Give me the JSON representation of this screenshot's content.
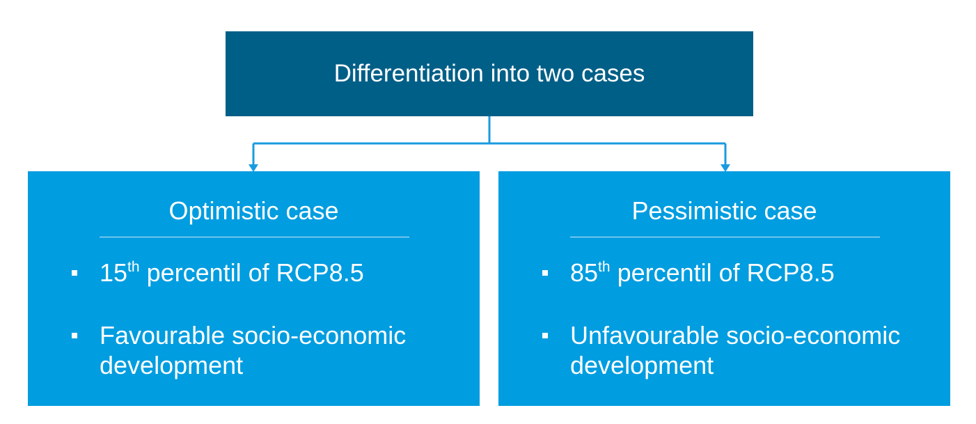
{
  "title": "Differentiation into two cases",
  "cases": [
    {
      "title": "Optimistic case",
      "bullets": [
        {
          "number": "15",
          "superscript": "th",
          "text": " percentil of RCP8.5"
        },
        {
          "text": "Favourable socio-economic development"
        }
      ]
    },
    {
      "title": "Pessimistic case",
      "bullets": [
        {
          "number": "85",
          "superscript": "th",
          "text": " percentil of RCP8.5"
        },
        {
          "text": "Unfavourable socio-economic development"
        }
      ]
    }
  ]
}
